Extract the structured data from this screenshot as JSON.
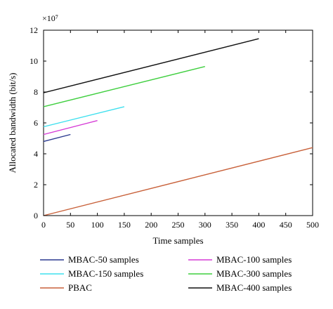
{
  "chart_data": {
    "type": "line",
    "title": "",
    "xlabel": "Time samples",
    "ylabel": "Allocated bandwidth (bit/s)",
    "y_multiplier_label": "×10⁷",
    "xlim": [
      0,
      500
    ],
    "ylim": [
      0,
      12
    ],
    "xticks": [
      0,
      50,
      100,
      150,
      200,
      250,
      300,
      350,
      400,
      450,
      500
    ],
    "yticks": [
      0,
      2,
      4,
      6,
      8,
      10,
      12
    ],
    "grid": false,
    "legend_position": "below",
    "series": [
      {
        "name": "MBAC-50 samples",
        "color": "#2b3a8f",
        "x": [
          0,
          50
        ],
        "y": [
          4.8,
          5.25
        ]
      },
      {
        "name": "MBAC-100 samples",
        "color": "#d63bd6",
        "x": [
          0,
          100
        ],
        "y": [
          5.25,
          6.15
        ]
      },
      {
        "name": "MBAC-150 samples",
        "color": "#3ee0ee",
        "x": [
          0,
          150
        ],
        "y": [
          5.75,
          7.05
        ]
      },
      {
        "name": "MBAC-300 samples",
        "color": "#3fcf3f",
        "x": [
          0,
          300
        ],
        "y": [
          7.05,
          9.65
        ]
      },
      {
        "name": "PBAC",
        "color": "#c8613a",
        "x": [
          0,
          500
        ],
        "y": [
          0,
          4.4
        ]
      },
      {
        "name": "MBAC-400 samples",
        "color": "#111111",
        "x": [
          0,
          400
        ],
        "y": [
          7.95,
          11.45
        ]
      }
    ],
    "legend_order": [
      "MBAC-50 samples",
      "MBAC-100 samples",
      "MBAC-150 samples",
      "MBAC-300 samples",
      "PBAC",
      "MBAC-400 samples"
    ]
  }
}
